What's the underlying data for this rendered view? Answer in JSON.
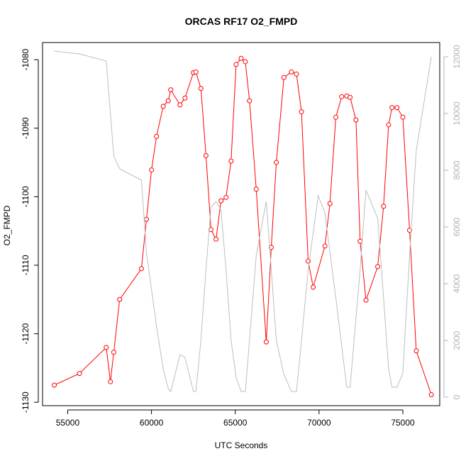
{
  "chart_data": {
    "type": "line",
    "title": "ORCAS RF17 O2_FMPD",
    "xlabel": "UTC Seconds",
    "ylabel": "O2_FMPD",
    "xlim": [
      53500,
      77200
    ],
    "ylim": [
      -1130.5,
      -1077.5
    ],
    "y2lim": [
      -300,
      12500
    ],
    "x_ticks": [
      55000,
      60000,
      65000,
      70000,
      75000
    ],
    "y_ticks": [
      -1130,
      -1120,
      -1110,
      -1100,
      -1090,
      -1080
    ],
    "y2_ticks": [
      0,
      2000,
      4000,
      6000,
      8000,
      10000,
      12000
    ],
    "grid": false,
    "series": [
      {
        "axis": "left",
        "color": "#ff0000",
        "markers": "open-circle",
        "x": [
          54200,
          55700,
          57300,
          57550,
          57750,
          58100,
          59400,
          59700,
          60000,
          60300,
          60700,
          61000,
          61150,
          61700,
          62000,
          62500,
          62650,
          62950,
          63250,
          63550,
          63850,
          64150,
          64450,
          64750,
          65050,
          65350,
          65600,
          65850,
          66250,
          66850,
          67150,
          67450,
          67900,
          68350,
          68650,
          68950,
          69350,
          69650,
          70350,
          70650,
          71000,
          71350,
          71650,
          71850,
          72200,
          72450,
          72800,
          73500,
          73850,
          74150,
          74350,
          74650,
          75000,
          75400,
          75800,
          76700
        ],
        "y": [
          -1127.5,
          -1125.8,
          -1122,
          -1127,
          -1122.7,
          -1115,
          -1110.5,
          -1103.3,
          -1096.1,
          -1091.2,
          -1086.8,
          -1086,
          -1084.4,
          -1086.6,
          -1085.6,
          -1081.9,
          -1081.8,
          -1084.2,
          -1094,
          -1104.8,
          -1106.2,
          -1100.6,
          -1100.1,
          -1094.8,
          -1080.7,
          -1079.8,
          -1080.3,
          -1086,
          -1098.9,
          -1121.2,
          -1107.4,
          -1095,
          -1082.6,
          -1081.8,
          -1082.1,
          -1087.6,
          -1109.4,
          -1113.2,
          -1107.2,
          -1101,
          -1088.4,
          -1085.4,
          -1085.3,
          -1085.5,
          -1088.8,
          -1106.5,
          -1115.1,
          -1110.2,
          -1101.4,
          -1089.5,
          -1087,
          -1087,
          -1088.4,
          -1104.9,
          -1122.5,
          -1128.9
        ]
      },
      {
        "axis": "right",
        "color": "#bebebe",
        "markers": "none",
        "x": [
          54200,
          55700,
          57300,
          57750,
          58100,
          59400,
          59700,
          60300,
          60700,
          61000,
          61150,
          61700,
          62000,
          62500,
          62650,
          62950,
          63250,
          63550,
          63850,
          64150,
          64450,
          64750,
          65050,
          65350,
          65600,
          65850,
          66250,
          66850,
          67150,
          67450,
          67900,
          68350,
          68650,
          68950,
          69350,
          69950,
          70350,
          71000,
          71350,
          71650,
          71850,
          72450,
          72800,
          73500,
          73850,
          74150,
          74350,
          74650,
          75000,
          75400,
          75800,
          76700
        ],
        "y": [
          12200,
          12100,
          11850,
          8500,
          8050,
          7650,
          5100,
          2500,
          1000,
          300,
          200,
          1500,
          1400,
          200,
          200,
          2000,
          4500,
          6700,
          6900,
          6600,
          4500,
          2000,
          700,
          200,
          200,
          2000,
          5000,
          6900,
          4500,
          2000,
          800,
          200,
          200,
          2000,
          4500,
          7100,
          6500,
          3500,
          1800,
          350,
          350,
          4500,
          7300,
          6300,
          3500,
          1000,
          350,
          350,
          850,
          5000,
          8700,
          12000
        ]
      }
    ]
  }
}
